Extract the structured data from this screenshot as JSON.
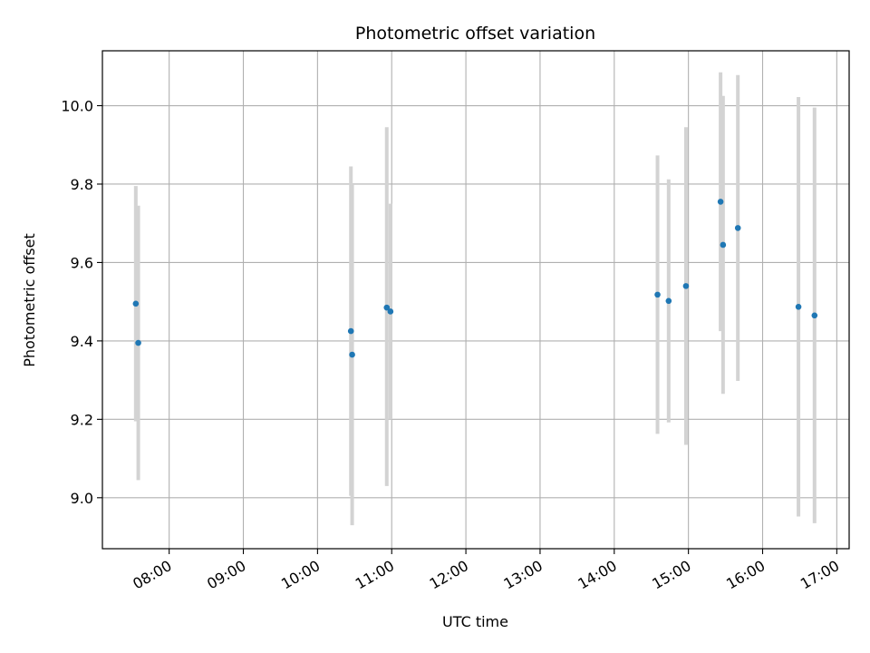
{
  "chart_data": {
    "type": "scatter",
    "title": "Photometric offset variation",
    "xlabel": "UTC time",
    "ylabel": "Photometric offset",
    "x_axis_type": "time",
    "xlim": [
      "07:06",
      "17:10"
    ],
    "ylim": [
      8.87,
      10.14
    ],
    "x_ticks": [
      "08:00",
      "09:00",
      "10:00",
      "11:00",
      "12:00",
      "13:00",
      "14:00",
      "15:00",
      "16:00",
      "17:00"
    ],
    "y_ticks": [
      9.0,
      9.2,
      9.4,
      9.6,
      9.8,
      10.0
    ],
    "y_tick_labels": [
      "9.0",
      "9.2",
      "9.4",
      "9.6",
      "9.8",
      "10.0"
    ],
    "grid": true,
    "point_color": "#1f77b4",
    "errorbar_color": "#d3d3d3",
    "points": [
      {
        "time": "07:33",
        "y": 9.495,
        "ylow": 9.195,
        "yhigh": 9.795
      },
      {
        "time": "07:35",
        "y": 9.395,
        "ylow": 9.045,
        "yhigh": 9.745
      },
      {
        "time": "10:27",
        "y": 9.425,
        "ylow": 9.005,
        "yhigh": 9.845
      },
      {
        "time": "10:28",
        "y": 9.365,
        "ylow": 8.93,
        "yhigh": 9.8
      },
      {
        "time": "10:56",
        "y": 9.485,
        "ylow": 9.03,
        "yhigh": 9.945
      },
      {
        "time": "10:59",
        "y": 9.475,
        "ylow": 9.2,
        "yhigh": 9.75
      },
      {
        "time": "14:35",
        "y": 9.518,
        "ylow": 9.163,
        "yhigh": 9.873
      },
      {
        "time": "14:44",
        "y": 9.502,
        "ylow": 9.192,
        "yhigh": 9.812
      },
      {
        "time": "14:58",
        "y": 9.54,
        "ylow": 9.135,
        "yhigh": 9.945
      },
      {
        "time": "15:26",
        "y": 9.755,
        "ylow": 9.425,
        "yhigh": 10.085
      },
      {
        "time": "15:28",
        "y": 9.645,
        "ylow": 9.265,
        "yhigh": 10.025
      },
      {
        "time": "15:40",
        "y": 9.688,
        "ylow": 9.298,
        "yhigh": 10.078
      },
      {
        "time": "16:29",
        "y": 9.487,
        "ylow": 8.952,
        "yhigh": 10.022
      },
      {
        "time": "16:42",
        "y": 9.465,
        "ylow": 8.935,
        "yhigh": 9.995
      }
    ]
  }
}
